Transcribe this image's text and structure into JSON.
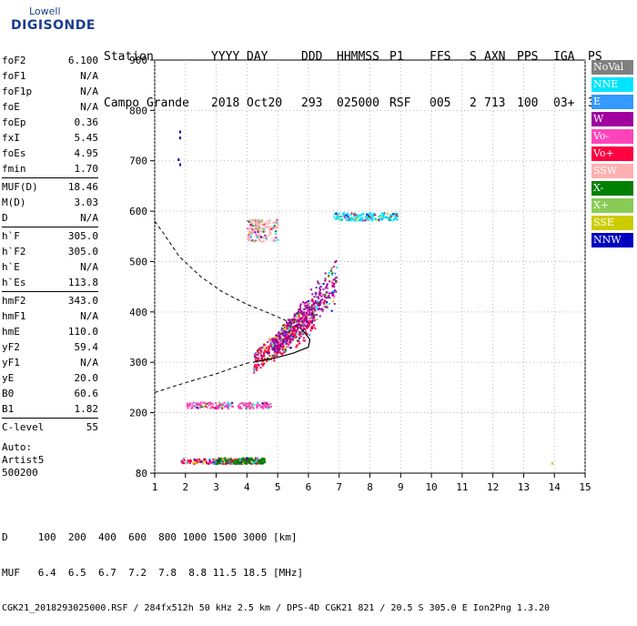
{
  "logo": {
    "brand": "Lowell",
    "name": "DIGISONDE"
  },
  "header": {
    "labels": [
      "Station",
      "YYYY",
      "DAY",
      "DDD",
      "HHMMSS",
      "P1",
      "FFS",
      "S",
      "AXN",
      "PPS",
      "IGA",
      "PS"
    ],
    "values": [
      "Campo Grande",
      "2018",
      "Oct20",
      "293",
      "025000",
      "RSF",
      "005",
      "2",
      "713",
      "100",
      "03+",
      "36"
    ]
  },
  "params": [
    [
      {
        "k": "foF2",
        "v": "6.100"
      },
      {
        "k": "foF1",
        "v": "N/A"
      },
      {
        "k": "foF1p",
        "v": "N/A"
      },
      {
        "k": "foE",
        "v": "N/A"
      },
      {
        "k": "foEp",
        "v": "0.36"
      },
      {
        "k": "fxI",
        "v": "5.45"
      },
      {
        "k": "foEs",
        "v": "4.95"
      },
      {
        "k": "fmin",
        "v": "1.70"
      }
    ],
    [
      {
        "k": "MUF(D)",
        "v": "18.46"
      },
      {
        "k": "M(D)",
        "v": "3.03"
      },
      {
        "k": "D",
        "v": "N/A"
      }
    ],
    [
      {
        "k": "h`F",
        "v": "305.0"
      },
      {
        "k": "h`F2",
        "v": "305.0"
      },
      {
        "k": "h`E",
        "v": "N/A"
      },
      {
        "k": "h`Es",
        "v": "113.8"
      }
    ],
    [
      {
        "k": "hmF2",
        "v": "343.0"
      },
      {
        "k": "hmF1",
        "v": "N/A"
      },
      {
        "k": "hmE",
        "v": "110.0"
      },
      {
        "k": "yF2",
        "v": "59.4"
      },
      {
        "k": "yF1",
        "v": "N/A"
      },
      {
        "k": "yE",
        "v": "20.0"
      },
      {
        "k": "B0",
        "v": "60.6"
      },
      {
        "k": "B1",
        "v": "1.82"
      }
    ],
    [
      {
        "k": "C-level",
        "v": "55"
      }
    ]
  ],
  "auto": {
    "l1": "Auto:",
    "l2": "Artist5",
    "l3": "500200"
  },
  "legend": [
    {
      "label": "NoVal",
      "color": "#808080"
    },
    {
      "label": "NNE",
      "color": "#00e5ff"
    },
    {
      "label": "E",
      "color": "#3399ff"
    },
    {
      "label": "W",
      "color": "#a000a0"
    },
    {
      "label": "Vo-",
      "color": "#ff44bb"
    },
    {
      "label": "Vo+",
      "color": "#ff0040"
    },
    {
      "label": "SSW",
      "color": "#ffb0b0"
    },
    {
      "label": "X-",
      "color": "#008000"
    },
    {
      "label": "X+",
      "color": "#88cc55"
    },
    {
      "label": "SSE",
      "color": "#cccc00"
    },
    {
      "label": "NNW",
      "color": "#0000c0"
    }
  ],
  "footer": {
    "line1": "D     100  200  400  600  800 1000 1500 3000 [km]",
    "line2": "MUF   6.4  6.5  6.7  7.2  7.8  8.8 11.5 18.5 [MHz]",
    "line3": "CGK21_2018293025000.RSF / 284fx512h 50 kHz 2.5 km / DPS-4D CGK21 821 / 20.5 S 305.0 E Ion2Png 1.3.20"
  },
  "chart_data": {
    "type": "scatter",
    "xlim": [
      1,
      15
    ],
    "ylim": [
      80,
      900
    ],
    "x_ticks": [
      1,
      2,
      3,
      4,
      5,
      6,
      7,
      8,
      9,
      10,
      11,
      12,
      13,
      14,
      15
    ],
    "y_ticks": [
      80,
      200,
      300,
      400,
      500,
      600,
      700,
      800,
      900
    ],
    "grid": "dotted",
    "legend_position": "right",
    "profile_curve": [
      [
        1.0,
        580
      ],
      [
        1.3,
        555
      ],
      [
        1.8,
        510
      ],
      [
        2.5,
        470
      ],
      [
        3.2,
        440
      ],
      [
        4.0,
        415
      ],
      [
        4.7,
        398
      ],
      [
        5.3,
        382
      ],
      [
        5.8,
        365
      ],
      [
        6.05,
        345
      ],
      [
        6.0,
        330
      ],
      [
        5.5,
        318
      ],
      [
        5.0,
        310
      ],
      [
        4.5,
        304
      ],
      [
        4.2,
        300
      ]
    ],
    "profile_lower": [
      [
        1.0,
        240
      ],
      [
        1.6,
        252
      ],
      [
        2.3,
        265
      ],
      [
        3.0,
        277
      ],
      [
        3.6,
        290
      ],
      [
        4.1,
        300
      ]
    ],
    "echo_clusters": [
      {
        "name": "Es",
        "color": "#ff0040",
        "x": [
          1.8,
          4.5
        ],
        "y": [
          100,
          110
        ]
      },
      {
        "name": "Es-X",
        "color": "#008000",
        "x": [
          3.0,
          4.6
        ],
        "y": [
          100,
          112
        ]
      },
      {
        "name": "Es-2hop",
        "color": "#ff44bb",
        "x": [
          2.0,
          4.8
        ],
        "y": [
          210,
          222
        ]
      },
      {
        "name": "F-trace",
        "color": "#ff0040",
        "x": [
          4.2,
          6.2
        ],
        "y": [
          300,
          400
        ]
      },
      {
        "name": "F-W",
        "color": "#a000a0",
        "x": [
          4.8,
          6.9
        ],
        "y": [
          330,
          470
        ]
      },
      {
        "name": "F2-NNE",
        "color": "#00e5ff",
        "x": [
          6.8,
          8.9
        ],
        "y": [
          583,
          598
        ]
      },
      {
        "name": "spread",
        "color": "#ffb0b0",
        "x": [
          4.0,
          5.0
        ],
        "y": [
          540,
          585
        ]
      }
    ]
  }
}
